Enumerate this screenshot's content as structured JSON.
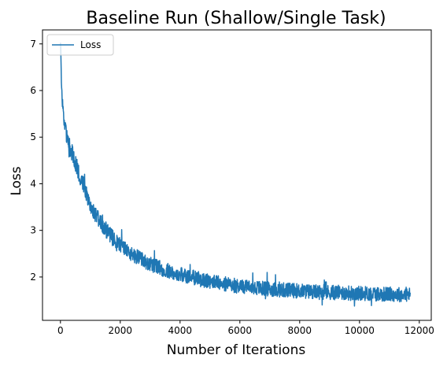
{
  "chart_data": {
    "type": "line",
    "title": "Baseline Run (Shallow/Single Task)",
    "xlabel": "Number of Iterations",
    "ylabel": "Loss",
    "xlim": [
      -600,
      12400
    ],
    "ylim": [
      1.07,
      7.3
    ],
    "xticks": [
      0,
      2000,
      4000,
      6000,
      8000,
      10000,
      12000
    ],
    "xtick_labels": [
      "0",
      "2000",
      "4000",
      "6000",
      "8000",
      "10000",
      "12000"
    ],
    "yticks": [
      2,
      3,
      4,
      5,
      6,
      7
    ],
    "ytick_labels": [
      "2",
      "3",
      "4",
      "5",
      "6",
      "7"
    ],
    "grid": false,
    "legend_position": "top-left",
    "series": [
      {
        "name": "Loss",
        "color": "#1f77b4",
        "points": [
          [
            0,
            7.0
          ],
          [
            50,
            5.9
          ],
          [
            100,
            5.45
          ],
          [
            150,
            5.3
          ],
          [
            200,
            5.05
          ],
          [
            300,
            4.8
          ],
          [
            400,
            4.65
          ],
          [
            500,
            4.45
          ],
          [
            600,
            4.25
          ],
          [
            800,
            3.95
          ],
          [
            1000,
            3.55
          ],
          [
            1200,
            3.3
          ],
          [
            1400,
            3.1
          ],
          [
            1600,
            2.95
          ],
          [
            1800,
            2.78
          ],
          [
            2000,
            2.68
          ],
          [
            2200,
            2.58
          ],
          [
            2500,
            2.45
          ],
          [
            3000,
            2.28
          ],
          [
            3500,
            2.15
          ],
          [
            4000,
            2.05
          ],
          [
            4500,
            1.98
          ],
          [
            5000,
            1.9
          ],
          [
            5500,
            1.85
          ],
          [
            6000,
            1.8
          ],
          [
            6500,
            1.77
          ],
          [
            7000,
            1.74
          ],
          [
            7500,
            1.72
          ],
          [
            8000,
            1.7
          ],
          [
            8500,
            1.68
          ],
          [
            9000,
            1.67
          ],
          [
            9500,
            1.66
          ],
          [
            10000,
            1.65
          ],
          [
            10500,
            1.64
          ],
          [
            11000,
            1.63
          ],
          [
            11700,
            1.62
          ]
        ]
      }
    ]
  }
}
